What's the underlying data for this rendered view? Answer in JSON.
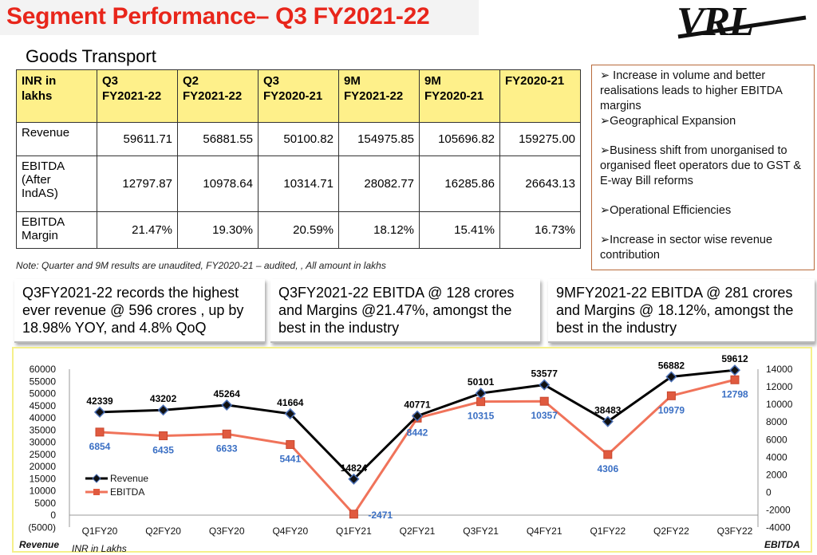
{
  "header": {
    "title": "Segment Performance– Q3 FY2021-22",
    "logo_text": "VRL"
  },
  "section_title": "Goods Transport",
  "table": {
    "headers": [
      "INR in lakhs",
      "Q3 FY2021-22",
      "Q2 FY2021-22",
      "Q3 FY2020-21",
      "9M FY2021-22",
      "9M FY2020-21",
      "FY2020-21"
    ],
    "header_lines": [
      [
        "INR in",
        "lakhs"
      ],
      [
        "Q3",
        "FY2021-22"
      ],
      [
        "Q2",
        "FY2021-22"
      ],
      [
        "Q3",
        "FY2020-21"
      ],
      [
        "9M",
        "FY2021-22"
      ],
      [
        "9M",
        "FY2020-21"
      ],
      [
        "FY2020-21",
        ""
      ]
    ],
    "rows": [
      {
        "label_lines": [
          "Revenue"
        ],
        "values": [
          "59611.71",
          "56881.55",
          "50100.82",
          "154975.85",
          "105696.82",
          "159275.00"
        ]
      },
      {
        "label_lines": [
          "EBITDA",
          "(After",
          "IndAS)"
        ],
        "values": [
          "12797.87",
          "10978.64",
          "10314.71",
          "28082.77",
          "16285.86",
          "26643.13"
        ]
      },
      {
        "label_lines": [
          "EBITDA",
          "Margin"
        ],
        "values": [
          "21.47%",
          "19.30%",
          "20.59%",
          "18.12%",
          "15.41%",
          "16.73%"
        ]
      }
    ]
  },
  "note": "Note: Quarter and 9M results are unaudited, FY2020-21 – audited, , All amount in lakhs",
  "bullets": [
    "➢ Increase in volume and better realisations leads to higher EBITDA margins",
    "➢Geographical Expansion",
    "➢Business shift from unorganised to organised fleet operators due to GST & E-way Bill reforms",
    "➢Operational Efficiencies",
    "➢Increase in sector wise revenue contribution"
  ],
  "callouts": [
    "Q3FY2021-22 records the highest ever revenue @ 596 crores , up by 18.98% YOY, and  4.8% QoQ",
    "Q3FY2021-22  EBITDA @ 128 crores and Margins @21.47%, amongst the best in the industry",
    "9MFY2021-22  EBITDA @ 281 crores and Margins @ 18.12%, amongst the best in the industry"
  ],
  "colors": {
    "title": "#e8261b",
    "revenue": "#000000",
    "ebitda": "#f0735a",
    "ebitda_label": "#3a6fc4",
    "table_header": "#fef08a",
    "chart_border": "#f5f08a",
    "bullet_border": "#b86a3a"
  },
  "chart_data": {
    "type": "line",
    "categories": [
      "Q1FY20",
      "Q2FY20",
      "Q3FY20",
      "Q4FY20",
      "Q1FY21",
      "Q2FY21",
      "Q3FY21",
      "Q4FY21",
      "Q1FY22",
      "Q2FY22",
      "Q3FY22"
    ],
    "series": [
      {
        "name": "Revenue",
        "axis": "left",
        "values": [
          42339,
          43202,
          45264,
          41664,
          14824,
          40771,
          50101,
          53577,
          38483,
          56882,
          59612
        ],
        "labels": [
          "42339",
          "43202",
          "45264",
          "41664",
          "14824",
          "40771",
          "50101",
          "53577",
          "38483",
          "56882",
          "59612"
        ]
      },
      {
        "name": "EBITDA",
        "axis": "right",
        "values": [
          6854,
          6435,
          6633,
          5441,
          -2471,
          8442,
          10315,
          10357,
          4306,
          10979,
          12798
        ],
        "labels": [
          "6854",
          "6435",
          "6633",
          "5441",
          "-2471",
          "8442",
          "10315",
          "10357",
          "4306",
          "10979",
          "12798"
        ]
      }
    ],
    "ylim_left": [
      -5000,
      60000
    ],
    "yticks_left": [
      -5000,
      0,
      5000,
      10000,
      15000,
      20000,
      25000,
      30000,
      35000,
      40000,
      45000,
      50000,
      55000,
      60000
    ],
    "ytick_labels_left": [
      "(5000)",
      "0",
      "5000",
      "10000",
      "15000",
      "20000",
      "25000",
      "30000",
      "35000",
      "40000",
      "45000",
      "50000",
      "55000",
      "60000"
    ],
    "ylim_right": [
      -4000,
      14000
    ],
    "yticks_right": [
      -4000,
      -2000,
      0,
      2000,
      4000,
      6000,
      8000,
      10000,
      12000,
      14000
    ],
    "ytick_labels_right": [
      "-4000",
      "-2000",
      "0",
      "2000",
      "4000",
      "6000",
      "8000",
      "10000",
      "12000",
      "14000"
    ],
    "ylabel_left": "Revenue",
    "ylabel_right": "EBITDA",
    "unit_note": "INR in Lakhs",
    "legend": "left",
    "grid": false
  }
}
